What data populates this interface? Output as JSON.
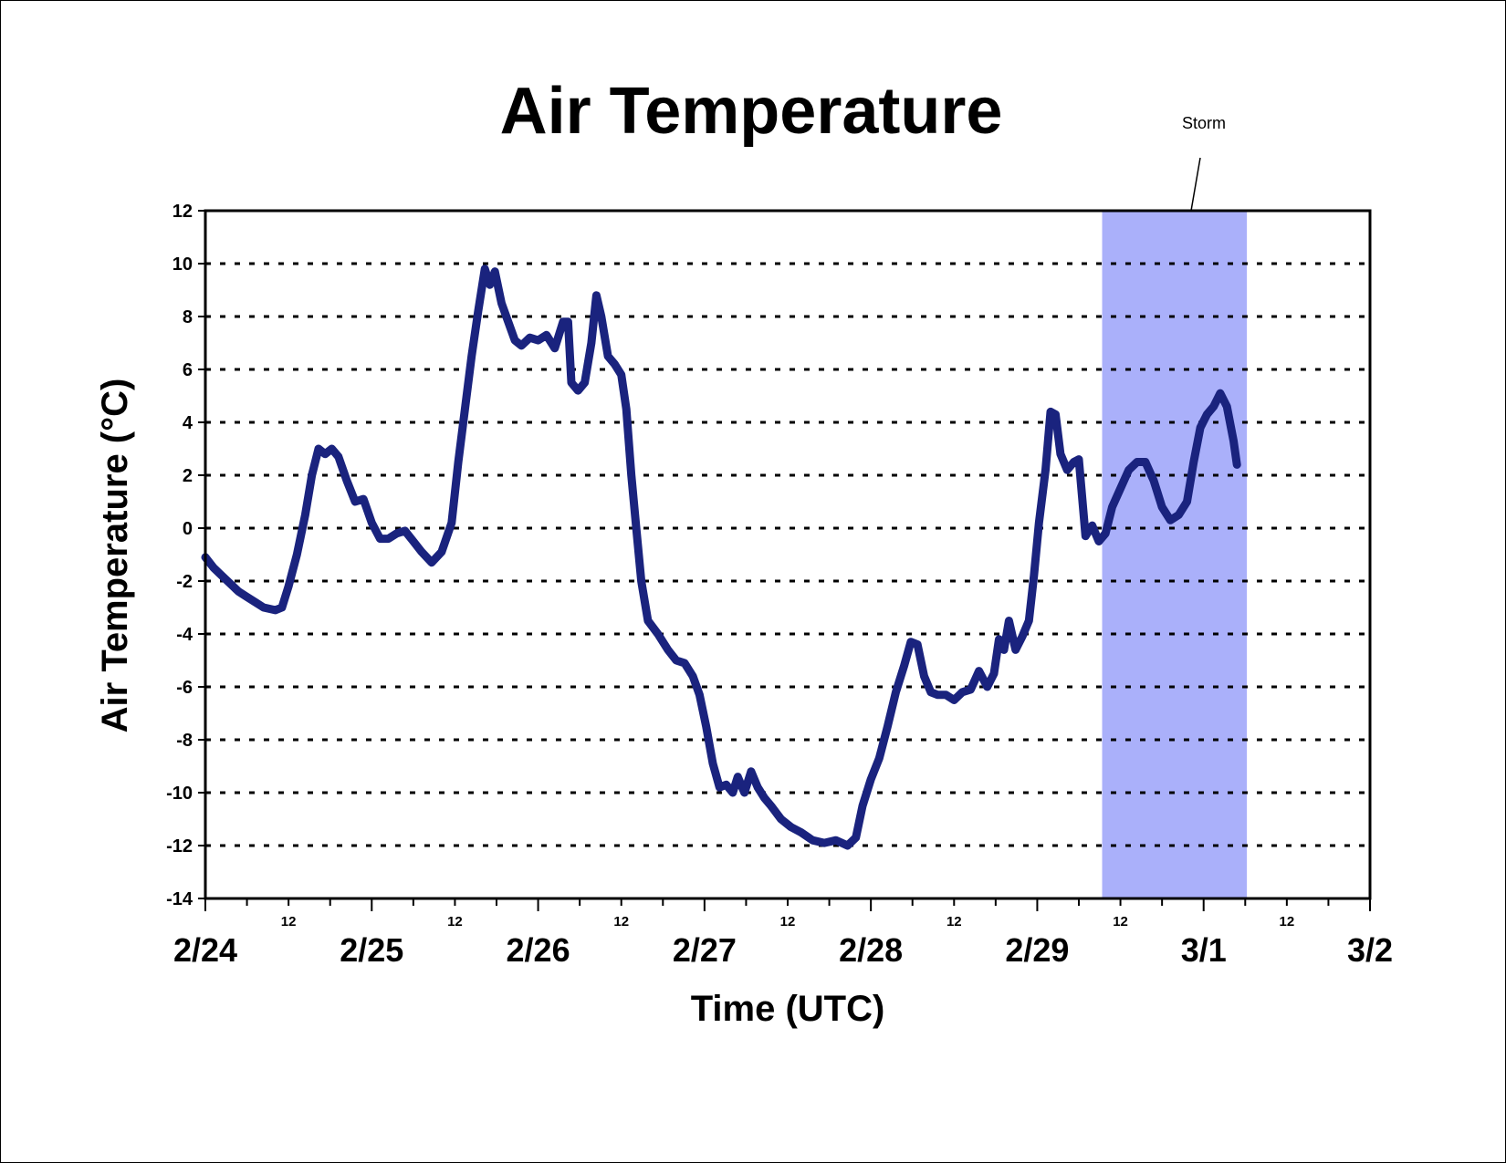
{
  "chart_data": {
    "type": "line",
    "title": "Air Temperature",
    "xlabel": "Time (UTC)",
    "ylabel": "Air Temperature (°C)",
    "ylim": [
      -14,
      12
    ],
    "yticks": [
      -14,
      -12,
      -10,
      -8,
      -6,
      -4,
      -2,
      0,
      2,
      4,
      6,
      8,
      10,
      12
    ],
    "xlim_days": [
      0,
      7
    ],
    "x_major_ticks": [
      {
        "label": "2/24",
        "day": 0
      },
      {
        "label": "2/25",
        "day": 1
      },
      {
        "label": "2/26",
        "day": 2
      },
      {
        "label": "2/27",
        "day": 3
      },
      {
        "label": "2/28",
        "day": 4
      },
      {
        "label": "2/29",
        "day": 5
      },
      {
        "label": "3/1",
        "day": 6
      },
      {
        "label": "3/2",
        "day": 7
      }
    ],
    "x_minor_label": "12",
    "grid": "horizontal-dotted",
    "colors": {
      "line": "#1a237e",
      "storm": "#aab0fa",
      "grid": "#000000"
    },
    "annotation": {
      "text": "Storm",
      "start_day": 5.39,
      "end_day": 6.26
    },
    "series": [
      {
        "name": "",
        "points": [
          [
            0.0,
            -1.1
          ],
          [
            0.05,
            -1.5
          ],
          [
            0.1,
            -1.8
          ],
          [
            0.15,
            -2.1
          ],
          [
            0.2,
            -2.4
          ],
          [
            0.25,
            -2.6
          ],
          [
            0.3,
            -2.8
          ],
          [
            0.35,
            -3.0
          ],
          [
            0.42,
            -3.1
          ],
          [
            0.46,
            -3.0
          ],
          [
            0.5,
            -2.2
          ],
          [
            0.55,
            -1.0
          ],
          [
            0.6,
            0.5
          ],
          [
            0.64,
            2.0
          ],
          [
            0.68,
            3.0
          ],
          [
            0.72,
            2.8
          ],
          [
            0.76,
            3.0
          ],
          [
            0.8,
            2.7
          ],
          [
            0.85,
            1.8
          ],
          [
            0.9,
            1.0
          ],
          [
            0.95,
            1.1
          ],
          [
            1.0,
            0.2
          ],
          [
            1.05,
            -0.4
          ],
          [
            1.1,
            -0.4
          ],
          [
            1.15,
            -0.2
          ],
          [
            1.2,
            -0.1
          ],
          [
            1.25,
            -0.5
          ],
          [
            1.3,
            -0.9
          ],
          [
            1.36,
            -1.3
          ],
          [
            1.42,
            -0.9
          ],
          [
            1.48,
            0.2
          ],
          [
            1.52,
            2.5
          ],
          [
            1.56,
            4.5
          ],
          [
            1.6,
            6.5
          ],
          [
            1.64,
            8.2
          ],
          [
            1.68,
            9.8
          ],
          [
            1.71,
            9.2
          ],
          [
            1.74,
            9.7
          ],
          [
            1.78,
            8.5
          ],
          [
            1.82,
            7.8
          ],
          [
            1.86,
            7.1
          ],
          [
            1.9,
            6.9
          ],
          [
            1.95,
            7.2
          ],
          [
            2.0,
            7.1
          ],
          [
            2.05,
            7.3
          ],
          [
            2.1,
            6.8
          ],
          [
            2.15,
            7.8
          ],
          [
            2.18,
            7.8
          ],
          [
            2.2,
            5.5
          ],
          [
            2.24,
            5.2
          ],
          [
            2.28,
            5.5
          ],
          [
            2.32,
            7.0
          ],
          [
            2.35,
            8.8
          ],
          [
            2.38,
            8.0
          ],
          [
            2.42,
            6.5
          ],
          [
            2.46,
            6.2
          ],
          [
            2.5,
            5.8
          ],
          [
            2.53,
            4.5
          ],
          [
            2.56,
            2.0
          ],
          [
            2.59,
            0.0
          ],
          [
            2.62,
            -2.0
          ],
          [
            2.66,
            -3.5
          ],
          [
            2.72,
            -4.0
          ],
          [
            2.78,
            -4.6
          ],
          [
            2.83,
            -5.0
          ],
          [
            2.88,
            -5.1
          ],
          [
            2.93,
            -5.6
          ],
          [
            2.97,
            -6.3
          ],
          [
            3.01,
            -7.5
          ],
          [
            3.05,
            -8.9
          ],
          [
            3.09,
            -9.8
          ],
          [
            3.13,
            -9.7
          ],
          [
            3.17,
            -10.0
          ],
          [
            3.2,
            -9.4
          ],
          [
            3.24,
            -10.0
          ],
          [
            3.28,
            -9.2
          ],
          [
            3.32,
            -9.8
          ],
          [
            3.36,
            -10.2
          ],
          [
            3.4,
            -10.5
          ],
          [
            3.46,
            -11.0
          ],
          [
            3.52,
            -11.3
          ],
          [
            3.58,
            -11.5
          ],
          [
            3.65,
            -11.8
          ],
          [
            3.72,
            -11.9
          ],
          [
            3.79,
            -11.8
          ],
          [
            3.86,
            -12.0
          ],
          [
            3.91,
            -11.7
          ],
          [
            3.95,
            -10.5
          ],
          [
            4.0,
            -9.5
          ],
          [
            4.05,
            -8.7
          ],
          [
            4.1,
            -7.5
          ],
          [
            4.15,
            -6.2
          ],
          [
            4.2,
            -5.2
          ],
          [
            4.24,
            -4.3
          ],
          [
            4.28,
            -4.4
          ],
          [
            4.32,
            -5.6
          ],
          [
            4.36,
            -6.2
          ],
          [
            4.4,
            -6.3
          ],
          [
            4.45,
            -6.3
          ],
          [
            4.5,
            -6.5
          ],
          [
            4.55,
            -6.2
          ],
          [
            4.6,
            -6.1
          ],
          [
            4.65,
            -5.4
          ],
          [
            4.7,
            -6.0
          ],
          [
            4.74,
            -5.5
          ],
          [
            4.77,
            -4.2
          ],
          [
            4.8,
            -4.6
          ],
          [
            4.83,
            -3.5
          ],
          [
            4.87,
            -4.6
          ],
          [
            4.91,
            -4.1
          ],
          [
            4.95,
            -3.5
          ],
          [
            4.98,
            -1.8
          ],
          [
            5.01,
            0.2
          ],
          [
            5.05,
            2.2
          ],
          [
            5.08,
            4.4
          ],
          [
            5.11,
            4.3
          ],
          [
            5.14,
            2.8
          ],
          [
            5.18,
            2.2
          ],
          [
            5.22,
            2.5
          ],
          [
            5.25,
            2.6
          ],
          [
            5.29,
            -0.3
          ],
          [
            5.33,
            0.1
          ],
          [
            5.37,
            -0.5
          ],
          [
            5.41,
            -0.2
          ],
          [
            5.45,
            0.8
          ],
          [
            5.5,
            1.5
          ],
          [
            5.55,
            2.2
          ],
          [
            5.6,
            2.5
          ],
          [
            5.65,
            2.5
          ],
          [
            5.7,
            1.8
          ],
          [
            5.75,
            0.8
          ],
          [
            5.8,
            0.3
          ],
          [
            5.85,
            0.5
          ],
          [
            5.9,
            1.0
          ],
          [
            5.94,
            2.5
          ],
          [
            5.98,
            3.8
          ],
          [
            6.02,
            4.3
          ],
          [
            6.06,
            4.6
          ],
          [
            6.1,
            5.1
          ],
          [
            6.14,
            4.6
          ],
          [
            6.18,
            3.3
          ],
          [
            6.2,
            2.4
          ]
        ]
      }
    ]
  }
}
